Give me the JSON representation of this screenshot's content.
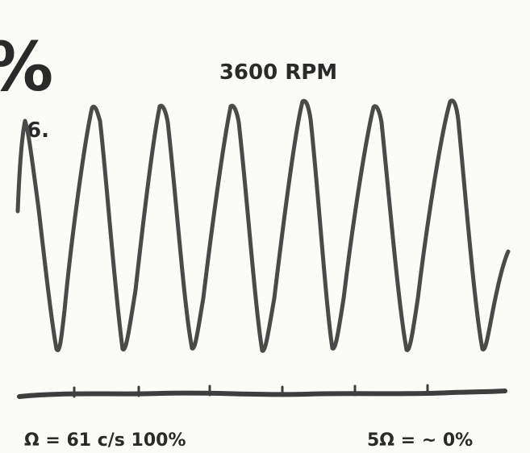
{
  "corner_mark": "%",
  "title": "3600 RPM",
  "panel_label": "6.",
  "footer": {
    "left": "Ω = 61 c/s 100%",
    "right": "5Ω = ~ 0%"
  }
}
